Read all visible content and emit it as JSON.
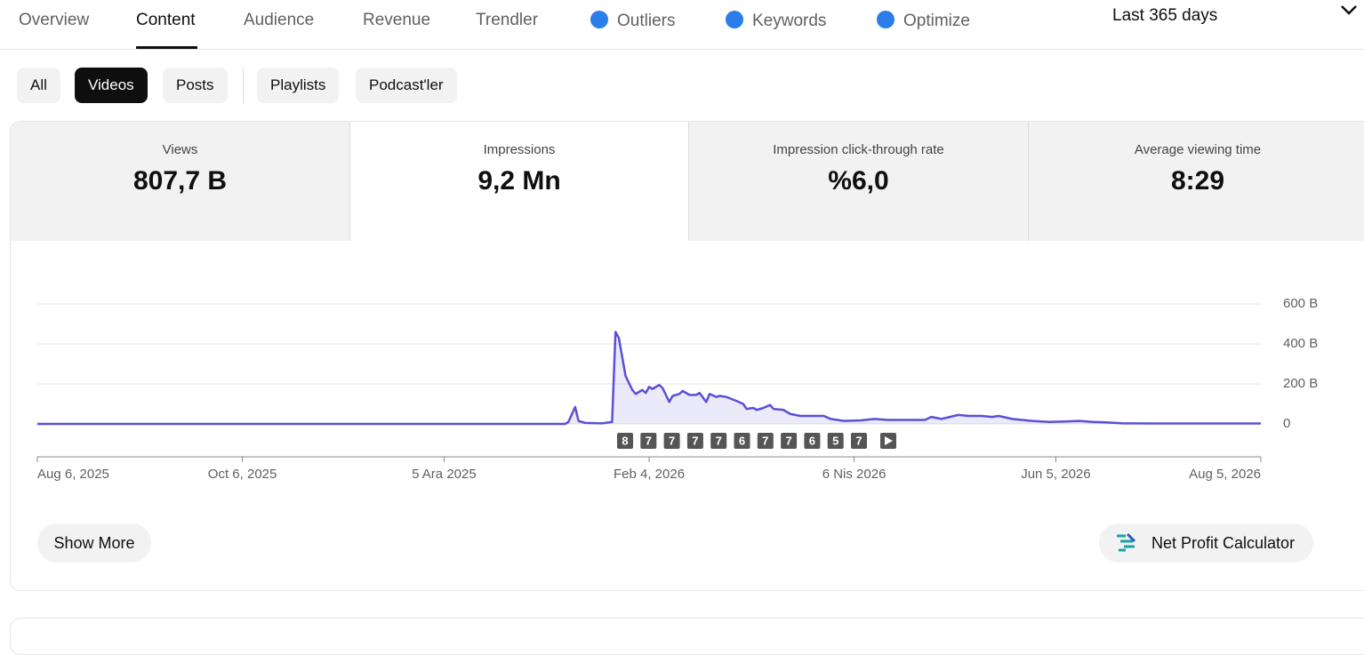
{
  "tabs": [
    "Overview",
    "Content",
    "Audience",
    "Revenue",
    "Trendler",
    "Outliers",
    "Keywords",
    "Optimize"
  ],
  "date_range": "Last 365 days",
  "filters": [
    "All",
    "Videos",
    "Posts",
    "Playlists",
    "Podcast'ler"
  ],
  "metrics": [
    {
      "label": "Views",
      "value": "807,7 B"
    },
    {
      "label": "Impressions",
      "value": "9,2 Mn"
    },
    {
      "label": "Impression click-through rate",
      "value": "%6,0"
    },
    {
      "label": "Average viewing time",
      "value": "8:29"
    }
  ],
  "chart_data": {
    "type": "line",
    "x": [
      "2025-08-06",
      "2026-01-10",
      "2026-01-11",
      "2026-01-13",
      "2026-01-14",
      "2026-01-16",
      "2026-01-21",
      "2026-01-24",
      "2026-01-25",
      "2026-01-26",
      "2026-01-28",
      "2026-01-30",
      "2026-01-31",
      "2026-02-02",
      "2026-02-03",
      "2026-02-04",
      "2026-02-05",
      "2026-02-07",
      "2026-02-08",
      "2026-02-10",
      "2026-02-11",
      "2026-02-13",
      "2026-02-14",
      "2026-02-16",
      "2026-02-18",
      "2026-02-19",
      "2026-02-21",
      "2026-02-22",
      "2026-02-24",
      "2026-02-25",
      "2026-02-27",
      "2026-03-02",
      "2026-03-04",
      "2026-03-05",
      "2026-03-07",
      "2026-03-08",
      "2026-03-10",
      "2026-03-12",
      "2026-03-13",
      "2026-03-16",
      "2026-03-18",
      "2026-03-21",
      "2026-03-28",
      "2026-03-30",
      "2026-04-03",
      "2026-04-08",
      "2026-04-12",
      "2026-04-16",
      "2026-04-22",
      "2026-04-27",
      "2026-04-29",
      "2026-05-02",
      "2026-05-07",
      "2026-05-10",
      "2026-05-14",
      "2026-05-17",
      "2026-05-19",
      "2026-05-23",
      "2026-05-29",
      "2026-06-03",
      "2026-06-08",
      "2026-06-12",
      "2026-06-16",
      "2026-06-20",
      "2026-06-25",
      "2026-07-04",
      "2026-08-05"
    ],
    "series": [
      {
        "color": "#5b50d6",
        "values": [
          0,
          0,
          10,
          85,
          15,
          5,
          3,
          10,
          460,
          430,
          240,
          170,
          150,
          170,
          155,
          185,
          175,
          195,
          180,
          110,
          140,
          150,
          165,
          145,
          145,
          155,
          110,
          150,
          135,
          140,
          135,
          115,
          100,
          75,
          80,
          70,
          80,
          95,
          75,
          70,
          50,
          40,
          40,
          25,
          15,
          18,
          25,
          20,
          20,
          20,
          35,
          25,
          45,
          40,
          40,
          35,
          40,
          25,
          15,
          10,
          12,
          15,
          10,
          8,
          3,
          2,
          2
        ]
      }
    ],
    "xlim": [
      "2025-08-06",
      "2026-08-05"
    ],
    "xticks": [
      {
        "value": "2025-08-06",
        "label": "Aug 6, 2025"
      },
      {
        "value": "2025-10-06",
        "label": "Oct 6, 2025"
      },
      {
        "value": "2025-12-05",
        "label": "5 Ara 2025"
      },
      {
        "value": "2026-02-04",
        "label": "Feb 4, 2026"
      },
      {
        "value": "2026-04-06",
        "label": "6 Nis 2026"
      },
      {
        "value": "2026-06-05",
        "label": "Jun 5, 2026"
      },
      {
        "value": "2026-08-05",
        "label": "Aug 5, 2026"
      }
    ],
    "ylim": [
      0,
      600
    ],
    "yticks": [
      {
        "value": 0,
        "label": "0"
      },
      {
        "value": 200,
        "label": "200 B"
      },
      {
        "value": 400,
        "label": "400 B"
      },
      {
        "value": 600,
        "label": "600 B"
      }
    ],
    "grid": true,
    "annotations": [
      "8",
      "7",
      "7",
      "7",
      "7",
      "6",
      "7",
      "7",
      "6",
      "5",
      "7"
    ]
  },
  "buttons": {
    "show_more": "Show More",
    "calculator": "Net Profit Calculator"
  }
}
